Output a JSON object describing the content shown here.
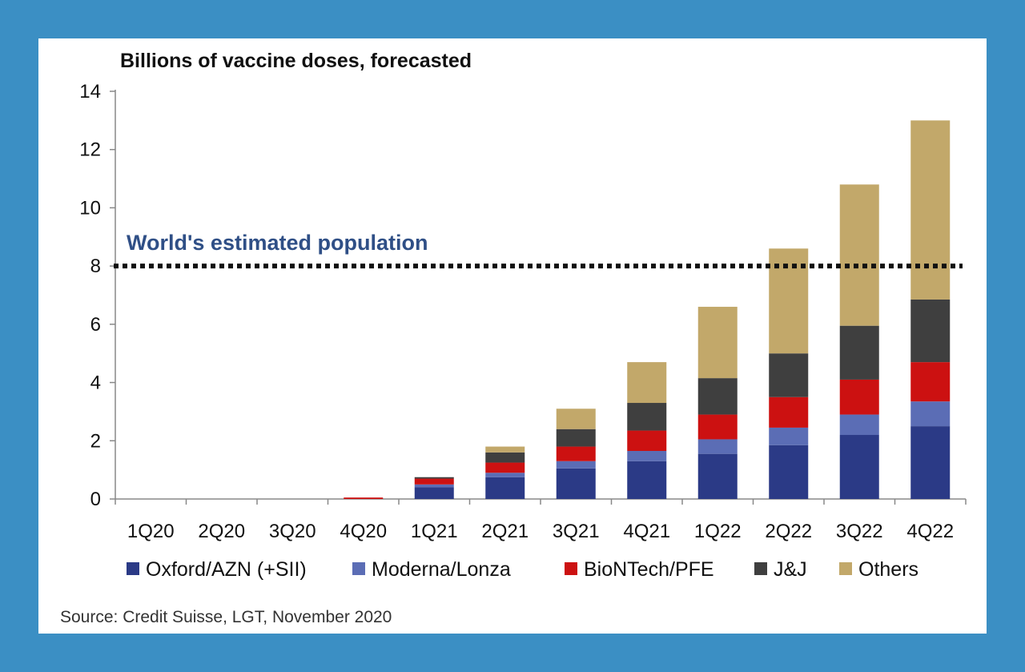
{
  "chart_data": {
    "type": "bar",
    "stacked": true,
    "title": "Billions of vaccine doses, forecasted",
    "xlabel": "",
    "ylabel": "",
    "ylim": [
      0,
      14
    ],
    "yticks": [
      0,
      2,
      4,
      6,
      8,
      10,
      12,
      14
    ],
    "grid": false,
    "legend_position": "bottom",
    "categories": [
      "1Q20",
      "2Q20",
      "3Q20",
      "4Q20",
      "1Q21",
      "2Q21",
      "3Q21",
      "4Q21",
      "1Q22",
      "2Q22",
      "3Q22",
      "4Q22"
    ],
    "series": [
      {
        "name": "Oxford/AZN (+SII)",
        "color": "#2b3a86",
        "values": [
          0,
          0,
          0,
          0,
          0.4,
          0.75,
          1.05,
          1.3,
          1.55,
          1.85,
          2.2,
          2.5
        ]
      },
      {
        "name": "Moderna/Lonza",
        "color": "#5b6db5",
        "values": [
          0,
          0,
          0,
          0,
          0.1,
          0.15,
          0.25,
          0.35,
          0.5,
          0.6,
          0.7,
          0.85
        ]
      },
      {
        "name": "BioNTech/PFE",
        "color": "#cc1111",
        "values": [
          0,
          0,
          0,
          0.05,
          0.2,
          0.35,
          0.5,
          0.7,
          0.85,
          1.05,
          1.2,
          1.35
        ]
      },
      {
        "name": "J&J",
        "color": "#3f3f3f",
        "values": [
          0,
          0,
          0,
          0,
          0.05,
          0.35,
          0.6,
          0.95,
          1.25,
          1.5,
          1.85,
          2.15
        ]
      },
      {
        "name": "Others",
        "color": "#c2a86a",
        "values": [
          0,
          0,
          0,
          0,
          0,
          0.2,
          0.7,
          1.4,
          2.45,
          3.6,
          4.85,
          6.15
        ]
      }
    ],
    "reference_line": {
      "label": "World's estimated population",
      "value": 8.0,
      "color": "#111111"
    }
  },
  "source": "Source:  Credit Suisse, LGT, November 2020"
}
